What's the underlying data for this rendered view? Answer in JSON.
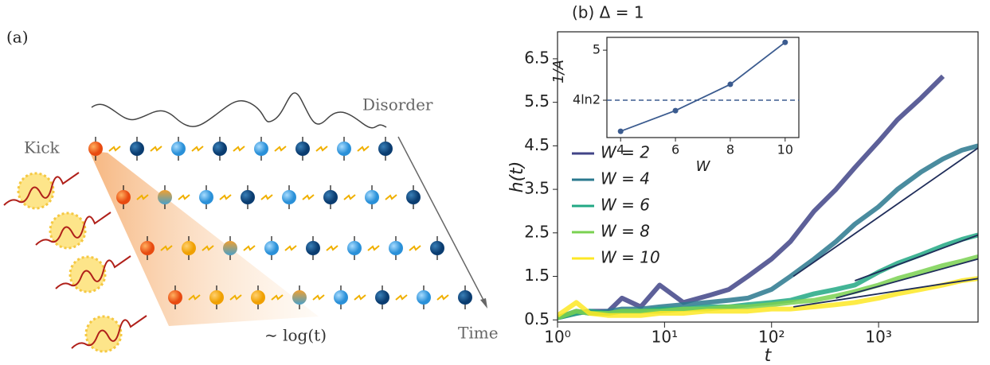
{
  "diagram": {
    "label": "(a)",
    "kick": "Kick",
    "disorder": "Disorder",
    "time": "Time",
    "spread": "∼ log(t)"
  },
  "chart_data": [
    {
      "type": "line",
      "title": "(b) Δ = 1",
      "x_label": "t",
      "y_label": "h(t)",
      "x_log": true,
      "xlim": [
        1,
        8500
      ],
      "ylim": [
        0.45,
        7.12
      ],
      "xticks": [
        {
          "value": 1,
          "label": "10⁰"
        },
        {
          "value": 10,
          "label": "10¹"
        },
        {
          "value": 100,
          "label": "10²"
        },
        {
          "value": 1000,
          "label": "10³"
        }
      ],
      "yticks": [
        0.5,
        1.5,
        2.5,
        3.5,
        4.5,
        5.5,
        6.5
      ],
      "x": [
        1,
        1.5,
        2,
        3,
        4,
        6,
        9,
        15,
        25,
        40,
        60,
        100,
        150,
        250,
        400,
        600,
        1000,
        1500,
        2500,
        4000,
        6000,
        8500
      ],
      "series": [
        {
          "name": "W = 2",
          "color": "#414487",
          "values": [
            0.55,
            0.65,
            0.7,
            0.7,
            1.0,
            0.8,
            1.3,
            0.9,
            1.05,
            1.2,
            1.5,
            1.9,
            2.3,
            3.0,
            3.5,
            4.0,
            4.6,
            5.1,
            5.6,
            6.1,
            null,
            null
          ]
        },
        {
          "name": "W = 4",
          "color": "#2a788e",
          "values": [
            0.55,
            0.7,
            0.65,
            0.7,
            0.75,
            0.75,
            0.8,
            0.85,
            0.9,
            0.95,
            1.0,
            1.2,
            1.5,
            1.9,
            2.3,
            2.7,
            3.1,
            3.5,
            3.9,
            4.2,
            4.4,
            4.5
          ]
        },
        {
          "name": "W = 6",
          "color": "#22a884",
          "values": [
            0.55,
            0.65,
            0.7,
            0.65,
            0.7,
            0.7,
            0.75,
            0.75,
            0.8,
            0.8,
            0.85,
            0.9,
            0.95,
            1.1,
            1.2,
            1.3,
            1.6,
            1.8,
            2.0,
            2.2,
            2.35,
            2.45
          ]
        },
        {
          "name": "W = 8",
          "color": "#7ad151",
          "values": [
            0.55,
            0.7,
            0.65,
            0.65,
            0.7,
            0.7,
            0.7,
            0.75,
            0.75,
            0.8,
            0.8,
            0.85,
            0.9,
            0.95,
            1.05,
            1.15,
            1.3,
            1.45,
            1.6,
            1.75,
            1.85,
            1.95
          ]
        },
        {
          "name": "W = 10",
          "color": "#fde725",
          "values": [
            0.6,
            0.9,
            0.65,
            0.6,
            0.6,
            0.6,
            0.65,
            0.65,
            0.7,
            0.7,
            0.7,
            0.75,
            0.75,
            0.8,
            0.85,
            0.9,
            1.0,
            1.1,
            1.2,
            1.3,
            1.4,
            1.45
          ]
        }
      ],
      "fit_lines": [
        {
          "color": "#1f2d5a",
          "x": [
            160,
            8500
          ],
          "values": [
            1.5,
            4.45
          ]
        },
        {
          "color": "#1f2d5a",
          "x": [
            600,
            8500
          ],
          "values": [
            1.4,
            2.45
          ]
        },
        {
          "color": "#1f2d5a",
          "x": [
            400,
            8500
          ],
          "values": [
            1.0,
            1.9
          ]
        },
        {
          "color": "#1f2d5a",
          "x": [
            160,
            8500
          ],
          "values": [
            0.8,
            1.45
          ]
        }
      ]
    },
    {
      "type": "line",
      "x_label": "W",
      "y_label": "1/A",
      "xlim": [
        3.5,
        10.5
      ],
      "ylim": [
        1.11,
        5.57
      ],
      "xticks": [
        4,
        6,
        8,
        10
      ],
      "yticks": [
        {
          "value": 2.7726,
          "label": "4ln2"
        },
        5
      ],
      "hline": 2.7726,
      "color": "#3b5b8f",
      "x": [
        4,
        6,
        8,
        10
      ],
      "values": [
        1.39,
        2.31,
        3.48,
        5.35
      ]
    }
  ]
}
